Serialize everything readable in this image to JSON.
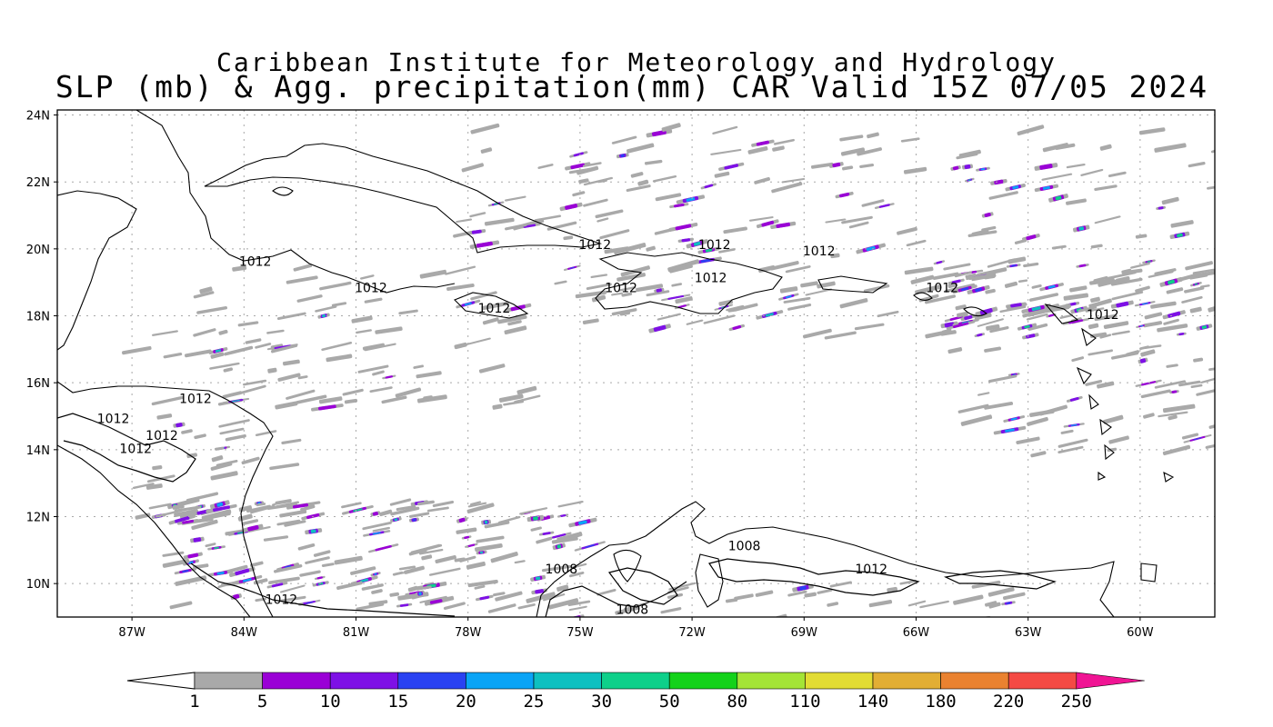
{
  "title_line1": "Caribbean Institute for Meteorology and Hydrology",
  "title_line2": "SLP (mb) & Agg. precipitation(mm) CAR Valid 15Z 07/05 2024",
  "lat_ticks": [
    "24N",
    "22N",
    "20N",
    "18N",
    "16N",
    "14N",
    "12N",
    "10N"
  ],
  "lon_ticks": [
    "87W",
    "84W",
    "81W",
    "78W",
    "75W",
    "72W",
    "69W",
    "66W",
    "63W",
    "60W"
  ],
  "isobar_labels": [
    {
      "text": "1012",
      "lon": -83.7,
      "lat": 19.5
    },
    {
      "text": "1012",
      "lon": -80.6,
      "lat": 18.7
    },
    {
      "text": "1012",
      "lon": -77.3,
      "lat": 18.1
    },
    {
      "text": "1012",
      "lon": -74.6,
      "lat": 20.0
    },
    {
      "text": "1012",
      "lon": -73.9,
      "lat": 18.7
    },
    {
      "text": "1012",
      "lon": -71.4,
      "lat": 20.0
    },
    {
      "text": "1012",
      "lon": -71.5,
      "lat": 19.0
    },
    {
      "text": "1012",
      "lon": -68.6,
      "lat": 19.8
    },
    {
      "text": "1012",
      "lon": -65.3,
      "lat": 18.7
    },
    {
      "text": "1012",
      "lon": -61.0,
      "lat": 17.9
    },
    {
      "text": "1012",
      "lon": -85.3,
      "lat": 15.4
    },
    {
      "text": "1012",
      "lon": -87.5,
      "lat": 14.8
    },
    {
      "text": "1012",
      "lon": -86.2,
      "lat": 14.3
    },
    {
      "text": "1012",
      "lon": -86.9,
      "lat": 13.9
    },
    {
      "text": "1012",
      "lon": -83.0,
      "lat": 9.4
    },
    {
      "text": "1008",
      "lon": -70.6,
      "lat": 11.0
    },
    {
      "text": "1008",
      "lon": -75.5,
      "lat": 10.3
    },
    {
      "text": "1008",
      "lon": -73.6,
      "lat": 9.1
    },
    {
      "text": "1012",
      "lon": -67.2,
      "lat": 10.3
    }
  ],
  "colorbar": {
    "labels": [
      "1",
      "5",
      "10",
      "15",
      "20",
      "25",
      "30",
      "50",
      "80",
      "110",
      "140",
      "180",
      "220",
      "250"
    ],
    "colors": [
      "#ffffff",
      "#a9a9a9",
      "#9a00d6",
      "#7e10e6",
      "#2a42f2",
      "#0aa4f6",
      "#0ec0c0",
      "#0ed08a",
      "#14d21a",
      "#a4e436",
      "#e2dc34",
      "#e2ae34",
      "#ea8230",
      "#f44a44",
      "#f01494"
    ]
  }
}
